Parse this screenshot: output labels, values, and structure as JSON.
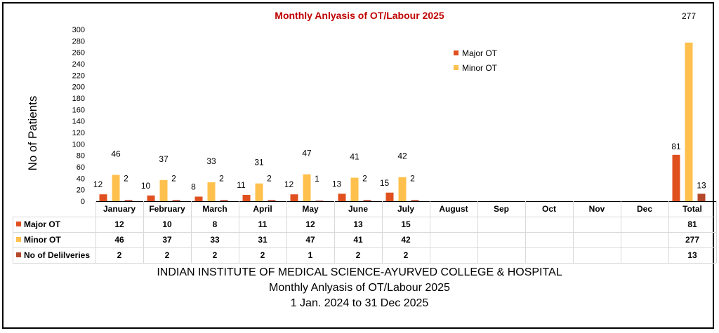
{
  "chart_data": {
    "type": "bar",
    "title": "Monthly Anlyasis of OT/Labour 2025",
    "ylabel": "No of Patients",
    "ylim": [
      0,
      300
    ],
    "yticks": [
      0,
      20,
      40,
      60,
      80,
      100,
      120,
      140,
      160,
      180,
      200,
      220,
      240,
      260,
      280,
      300
    ],
    "categories": [
      "January",
      "February",
      "March",
      "April",
      "May",
      "June",
      "July",
      "August",
      "Sep",
      "Oct",
      "Nov",
      "Dec",
      "Total"
    ],
    "series": [
      {
        "name": "Major OT",
        "color": "#E0501F",
        "values": [
          12,
          10,
          8,
          11,
          12,
          13,
          15,
          null,
          null,
          null,
          null,
          null,
          81
        ],
        "show_legend": true
      },
      {
        "name": "Minor OT",
        "color": "#FFC04D",
        "values": [
          46,
          37,
          33,
          31,
          47,
          41,
          42,
          null,
          null,
          null,
          null,
          null,
          277
        ],
        "show_legend": true
      },
      {
        "name": "No of Delilveries",
        "color": "#B5472A",
        "values": [
          2,
          2,
          2,
          2,
          1,
          2,
          2,
          null,
          null,
          null,
          null,
          null,
          13
        ],
        "show_legend": false
      }
    ],
    "legend_position": "top-right",
    "data_table": true,
    "grid": false
  },
  "footer": {
    "line1": "INDIAN INSTITUTE OF MEDICAL SCIENCE-AYURVED COLLEGE & HOSPITAL",
    "line2": "Monthly Anlyasis of OT/Labour 2025",
    "line3": "1 Jan. 2024 to 31 Dec 2025"
  },
  "colors": {
    "title": "#C00000",
    "axis": "#D9D9D9",
    "text": "#000000"
  }
}
